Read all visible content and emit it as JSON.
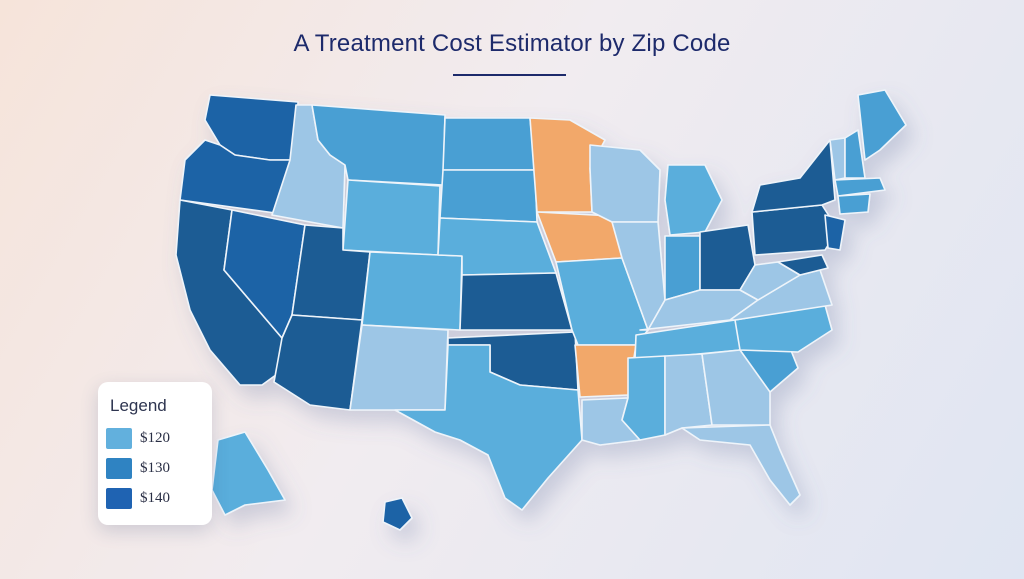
{
  "title": "A Treatment Cost Estimator by Zip Code",
  "colors": {
    "light": "#9dc6e6",
    "mid": "#4a9fd3",
    "mid2": "#5aaedc",
    "dark": "#1f63a6",
    "darker": "#1c5b94",
    "highlight": "#f2a86a",
    "accent_text": "#1d2a6b"
  },
  "legend": {
    "title": "Legend",
    "items": [
      {
        "label": "$120",
        "color": "#62b0dd"
      },
      {
        "label": "$130",
        "color": "#2f83c2"
      },
      {
        "label": "$140",
        "color": "#1f63b2"
      }
    ]
  },
  "regions": [
    {
      "name": "WA",
      "tier": "dark"
    },
    {
      "name": "OR",
      "tier": "dark"
    },
    {
      "name": "CA",
      "tier": "darker"
    },
    {
      "name": "ID",
      "tier": "light"
    },
    {
      "name": "NV",
      "tier": "dark"
    },
    {
      "name": "MT",
      "tier": "mid"
    },
    {
      "name": "WY",
      "tier": "mid2"
    },
    {
      "name": "UT",
      "tier": "darker"
    },
    {
      "name": "AZ",
      "tier": "darker"
    },
    {
      "name": "CO",
      "tier": "mid2"
    },
    {
      "name": "NM",
      "tier": "light"
    },
    {
      "name": "ND",
      "tier": "mid"
    },
    {
      "name": "SD",
      "tier": "mid"
    },
    {
      "name": "NE",
      "tier": "mid2"
    },
    {
      "name": "KS",
      "tier": "darker"
    },
    {
      "name": "OK",
      "tier": "darker"
    },
    {
      "name": "TX",
      "tier": "mid2"
    },
    {
      "name": "MN",
      "tier": "highlight"
    },
    {
      "name": "IA",
      "tier": "highlight"
    },
    {
      "name": "MO",
      "tier": "mid2"
    },
    {
      "name": "AR",
      "tier": "highlight"
    },
    {
      "name": "LA",
      "tier": "light"
    },
    {
      "name": "WI",
      "tier": "light"
    },
    {
      "name": "IL",
      "tier": "light"
    },
    {
      "name": "MI",
      "tier": "mid2"
    },
    {
      "name": "IN",
      "tier": "mid"
    },
    {
      "name": "OH",
      "tier": "darker"
    },
    {
      "name": "KY",
      "tier": "light"
    },
    {
      "name": "TN",
      "tier": "mid2"
    },
    {
      "name": "MS",
      "tier": "mid2"
    },
    {
      "name": "AL",
      "tier": "light"
    },
    {
      "name": "GA",
      "tier": "light"
    },
    {
      "name": "FL",
      "tier": "light"
    },
    {
      "name": "SC",
      "tier": "mid"
    },
    {
      "name": "NC",
      "tier": "mid2"
    },
    {
      "name": "VA",
      "tier": "light"
    },
    {
      "name": "WV",
      "tier": "light"
    },
    {
      "name": "PA",
      "tier": "darker"
    },
    {
      "name": "NY",
      "tier": "darker"
    },
    {
      "name": "NJ",
      "tier": "dark"
    },
    {
      "name": "MD",
      "tier": "darker"
    },
    {
      "name": "VT",
      "tier": "light"
    },
    {
      "name": "NH",
      "tier": "mid"
    },
    {
      "name": "ME",
      "tier": "mid"
    },
    {
      "name": "MA",
      "tier": "mid"
    },
    {
      "name": "CT",
      "tier": "mid"
    },
    {
      "name": "AK",
      "tier": "mid2"
    },
    {
      "name": "HI",
      "tier": "dark"
    }
  ]
}
